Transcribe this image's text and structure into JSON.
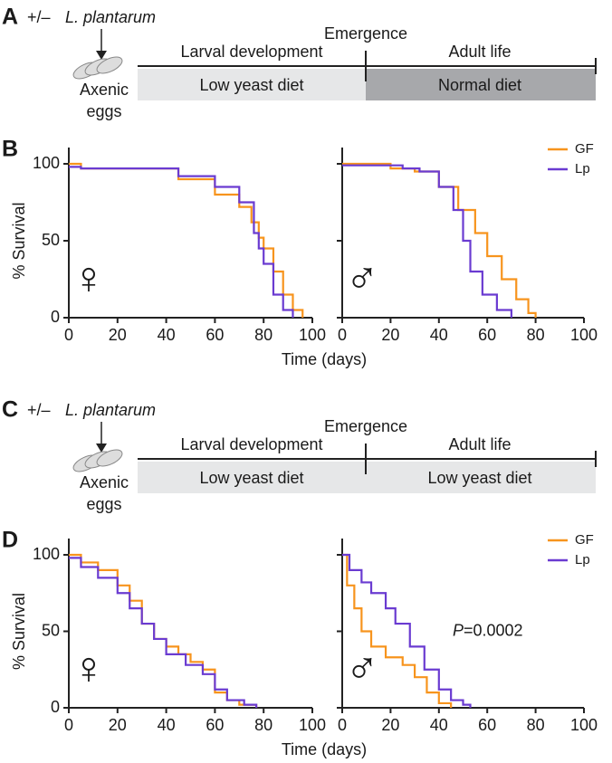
{
  "panels": {
    "A": {
      "label": "A",
      "treatment_prefix": "+/–",
      "treatment_species": "L. plantarum",
      "eggs_label": [
        "Axenic",
        "eggs"
      ],
      "stage1": "Larval development",
      "event": "Emergence",
      "stage2": "Adult life",
      "diet1": "Low yeast diet",
      "diet2": "Normal diet",
      "diet_colors": [
        "#e6e7e8",
        "#a7a8ab"
      ]
    },
    "C": {
      "label": "C",
      "treatment_prefix": "+/–",
      "treatment_species": "L. plantarum",
      "eggs_label": [
        "Axenic",
        "eggs"
      ],
      "stage1": "Larval development",
      "event": "Emergence",
      "stage2": "Adult life",
      "diet1": "Low yeast diet",
      "diet2": "Low yeast diet",
      "diet_colors": [
        "#e6e7e8",
        "#e6e7e8"
      ]
    }
  },
  "chart_data": [
    {
      "type": "line",
      "step": true,
      "panel_label": "B",
      "ylabel": "% Survival",
      "xlabel": "Time (days)",
      "sex_symbol": "♀",
      "xlim": [
        0,
        100
      ],
      "ylim": [
        0,
        100
      ],
      "xticks": [
        0,
        20,
        40,
        60,
        80,
        100
      ],
      "yticks": [
        0,
        50,
        100
      ],
      "ytick_labels": true,
      "series": [
        {
          "color": "#f7941d",
          "x": [
            0,
            5,
            35,
            45,
            60,
            70,
            75,
            78,
            80,
            84,
            88,
            92,
            96
          ],
          "values": [
            100,
            97,
            97,
            90,
            80,
            72,
            62,
            52,
            45,
            30,
            15,
            5,
            0
          ]
        },
        {
          "color": "#6a3bd1",
          "x": [
            0,
            5,
            35,
            45,
            60,
            70,
            76,
            78,
            80,
            84,
            88,
            92
          ],
          "values": [
            98,
            97,
            97,
            92,
            85,
            75,
            55,
            45,
            35,
            15,
            5,
            0
          ]
        }
      ]
    },
    {
      "type": "line",
      "step": true,
      "sex_symbol": "♂",
      "legend": "upper right",
      "xlim": [
        0,
        100
      ],
      "ylim": [
        0,
        100
      ],
      "xticks": [
        0,
        20,
        40,
        60,
        80,
        100
      ],
      "yticks": [
        0,
        50,
        100
      ],
      "ytick_labels": false,
      "series": [
        {
          "name": "GF",
          "color": "#f7941d",
          "x": [
            0,
            20,
            30,
            40,
            48,
            55,
            60,
            66,
            72,
            77,
            80
          ],
          "values": [
            100,
            97,
            95,
            85,
            70,
            55,
            40,
            25,
            12,
            3,
            0
          ]
        },
        {
          "name": "Lp",
          "color": "#6a3bd1",
          "x": [
            0,
            25,
            32,
            40,
            46,
            50,
            53,
            58,
            64,
            70
          ],
          "values": [
            99,
            97,
            95,
            85,
            70,
            50,
            30,
            15,
            5,
            0
          ]
        }
      ]
    },
    {
      "type": "line",
      "step": true,
      "panel_label": "D",
      "ylabel": "% Survival",
      "xlabel": "Time (days)",
      "sex_symbol": "♀",
      "xlim": [
        0,
        100
      ],
      "ylim": [
        0,
        100
      ],
      "xticks": [
        0,
        20,
        40,
        60,
        80,
        100
      ],
      "yticks": [
        0,
        50,
        100
      ],
      "ytick_labels": true,
      "series": [
        {
          "color": "#f7941d",
          "x": [
            0,
            5,
            12,
            20,
            25,
            30,
            35,
            40,
            45,
            50,
            55,
            60,
            65,
            70,
            77
          ],
          "values": [
            100,
            95,
            90,
            80,
            70,
            55,
            45,
            40,
            35,
            30,
            25,
            10,
            5,
            2,
            0
          ]
        },
        {
          "color": "#6a3bd1",
          "x": [
            0,
            5,
            12,
            20,
            25,
            30,
            35,
            40,
            48,
            55,
            60,
            65,
            72,
            77
          ],
          "values": [
            98,
            92,
            85,
            75,
            65,
            55,
            45,
            35,
            28,
            22,
            12,
            5,
            2,
            0
          ]
        }
      ]
    },
    {
      "type": "line",
      "step": true,
      "sex_symbol": "♂",
      "legend": "upper right",
      "annotation_italic": "P",
      "annotation": "=0.0002",
      "xlim": [
        0,
        100
      ],
      "ylim": [
        0,
        100
      ],
      "xticks": [
        0,
        20,
        40,
        60,
        80,
        100
      ],
      "yticks": [
        0,
        50,
        100
      ],
      "ytick_labels": false,
      "series": [
        {
          "name": "GF",
          "color": "#f7941d",
          "x": [
            0,
            2,
            5,
            8,
            12,
            18,
            25,
            30,
            35,
            40,
            45
          ],
          "values": [
            100,
            80,
            65,
            50,
            40,
            33,
            28,
            20,
            10,
            3,
            0
          ]
        },
        {
          "name": "Lp",
          "color": "#6a3bd1",
          "x": [
            0,
            3,
            8,
            12,
            18,
            22,
            28,
            34,
            40,
            45,
            50,
            53
          ],
          "values": [
            100,
            90,
            82,
            75,
            65,
            55,
            40,
            25,
            12,
            5,
            2,
            0
          ]
        }
      ]
    }
  ]
}
